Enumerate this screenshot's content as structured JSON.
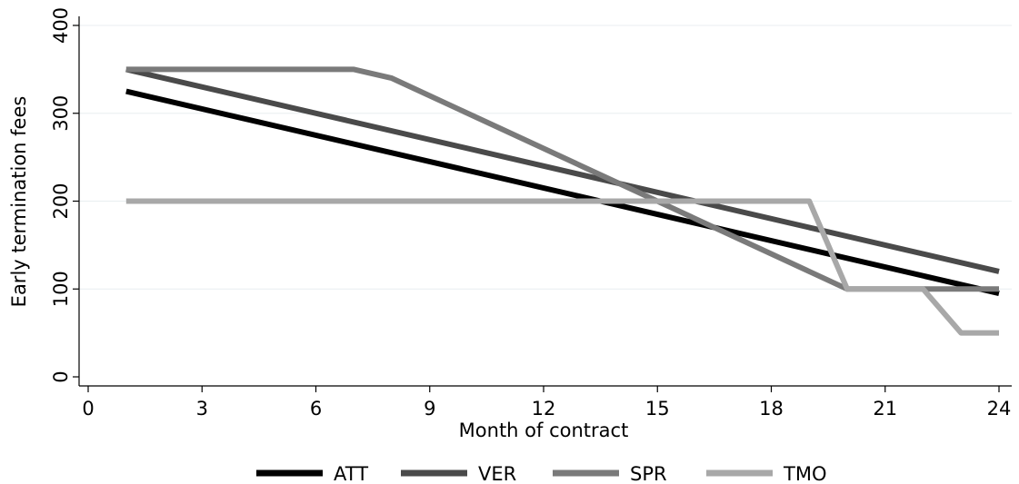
{
  "chart_data": {
    "type": "line",
    "xlabel": "Month of contract",
    "ylabel": "Early termination fees",
    "xlim": [
      0,
      24
    ],
    "ylim": [
      0,
      400
    ],
    "xticks": [
      0,
      3,
      6,
      9,
      12,
      15,
      18,
      21,
      24
    ],
    "yticks": [
      0,
      100,
      200,
      300,
      400
    ],
    "grid": "horizontal",
    "legend_position": "bottom",
    "series": [
      {
        "name": "ATT",
        "color": "#000000",
        "x": [
          1,
          24
        ],
        "y": [
          325,
          95
        ]
      },
      {
        "name": "VER",
        "color": "#4a4a4a",
        "x": [
          1,
          24
        ],
        "y": [
          350,
          120
        ]
      },
      {
        "name": "SPR",
        "color": "#7a7a7a",
        "x": [
          1,
          7,
          8,
          20,
          24
        ],
        "y": [
          350,
          350,
          340,
          100,
          100
        ]
      },
      {
        "name": "TMO",
        "color": "#a8a8a8",
        "x": [
          1,
          19,
          20,
          22,
          23,
          24
        ],
        "y": [
          200,
          200,
          100,
          100,
          50,
          50
        ]
      }
    ]
  }
}
